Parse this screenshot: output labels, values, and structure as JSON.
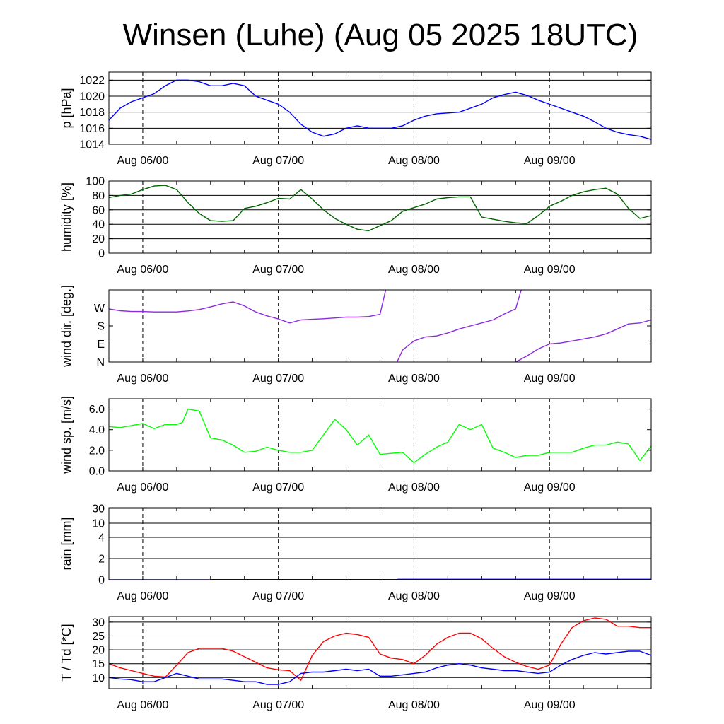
{
  "title": "Winsen (Luhe) (Aug 05 2025 18UTC)",
  "x_tick_labels": [
    "Aug 06/00",
    "Aug 07/00",
    "Aug 08/00",
    "Aug 09/00"
  ],
  "chart_data": [
    {
      "id": "pressure",
      "type": "line",
      "ylabel": "p [hPa]",
      "ylim": [
        1014,
        1023
      ],
      "yticks": [
        1014,
        1016,
        1018,
        1020,
        1022
      ],
      "ytick_labels": [
        "1014",
        "1016",
        "1018",
        "1020",
        "1022"
      ],
      "grid": true,
      "series": [
        {
          "color": "#0000ff",
          "x": [
            0,
            2,
            4,
            6,
            8,
            10,
            12,
            14,
            16,
            18,
            20,
            22,
            24,
            26,
            28,
            30,
            32,
            34,
            36,
            38,
            40,
            42,
            44,
            46,
            48,
            50,
            52,
            54,
            56,
            58,
            60,
            62,
            64,
            66,
            68,
            70,
            72,
            74,
            76,
            78,
            80,
            82,
            84,
            86,
            88,
            90,
            92,
            94,
            96
          ],
          "y": [
            1017.0,
            1018.5,
            1019.3,
            1019.8,
            1020.3,
            1021.3,
            1022.0,
            1022.0,
            1021.8,
            1021.3,
            1021.3,
            1021.6,
            1021.3,
            1020.0,
            1019.5,
            1019.0,
            1018.0,
            1016.5,
            1015.5,
            1015.0,
            1015.3,
            1016.0,
            1016.3,
            1016.0,
            1016.0,
            1016.0,
            1016.3,
            1017.0,
            1017.5,
            1017.8,
            1017.9,
            1018.0,
            1018.5,
            1019.0,
            1019.8,
            1020.2,
            1020.5,
            1020.1,
            1019.5,
            1019.0,
            1018.5,
            1018.0,
            1017.5,
            1016.8,
            1016.0,
            1015.5,
            1015.2,
            1015.0,
            1014.6
          ]
        }
      ]
    },
    {
      "id": "humidity",
      "type": "line",
      "ylabel": "humidity [%]",
      "ylim": [
        0,
        100
      ],
      "yticks": [
        0,
        20,
        40,
        60,
        80,
        100
      ],
      "ytick_labels": [
        "0",
        "20",
        "40",
        "60",
        "80",
        "100"
      ],
      "grid": true,
      "series": [
        {
          "color": "#006400",
          "x": [
            0,
            2,
            4,
            6,
            8,
            10,
            12,
            14,
            16,
            18,
            20,
            22,
            24,
            26,
            28,
            30,
            32,
            34,
            36,
            38,
            40,
            42,
            44,
            46,
            48,
            50,
            52,
            54,
            56,
            58,
            60,
            62,
            64,
            66,
            68,
            70,
            72,
            74,
            76,
            78,
            80,
            82,
            84,
            86,
            88,
            90,
            92,
            94,
            96
          ],
          "y": [
            77,
            80,
            82,
            88,
            93,
            94,
            88,
            70,
            55,
            45,
            44,
            45,
            62,
            65,
            70,
            76,
            75,
            88,
            75,
            60,
            48,
            40,
            33,
            31,
            38,
            45,
            58,
            63,
            68,
            75,
            77,
            78,
            78,
            50,
            47,
            44,
            42,
            41,
            52,
            65,
            72,
            80,
            85,
            88,
            90,
            82,
            62,
            48,
            52
          ]
        }
      ]
    },
    {
      "id": "wind_direction",
      "type": "line",
      "ylabel": "wind dir. [deg.]",
      "ylim": [
        0,
        360
      ],
      "yticks": [
        0,
        90,
        180,
        270
      ],
      "ytick_labels": [
        "N",
        "E",
        "S",
        "W"
      ],
      "grid": false,
      "series": [
        {
          "color": "#8a2be2",
          "x": [
            0,
            2,
            4,
            6,
            8,
            10,
            12,
            14,
            16,
            18,
            20,
            22,
            24,
            26,
            28,
            30,
            32,
            34,
            36,
            38,
            40,
            42,
            44,
            46,
            48,
            49
          ],
          "y": [
            265,
            256,
            252,
            252,
            250,
            250,
            250,
            255,
            262,
            275,
            290,
            300,
            280,
            250,
            230,
            215,
            195,
            210,
            213,
            216,
            220,
            224,
            224,
            227,
            238,
            360
          ]
        },
        {
          "color": "#8a2be2",
          "x": [
            51,
            52,
            54,
            56,
            58,
            60,
            62,
            64,
            66,
            68,
            70,
            72,
            73
          ],
          "y": [
            0,
            60,
            105,
            125,
            130,
            145,
            165,
            180,
            195,
            210,
            240,
            265,
            360
          ]
        },
        {
          "color": "#8a2be2",
          "x": [
            72,
            74,
            76,
            78,
            80,
            82,
            84,
            86,
            88,
            90,
            92,
            94,
            96
          ],
          "y": [
            0,
            30,
            65,
            90,
            95,
            105,
            115,
            125,
            140,
            165,
            190,
            195,
            210
          ]
        }
      ]
    },
    {
      "id": "wind_speed",
      "type": "line",
      "ylabel": "wind sp. [m/s]",
      "ylim": [
        0,
        7
      ],
      "yticks": [
        0,
        2,
        4,
        6
      ],
      "ytick_labels": [
        "0.0",
        "2.0",
        "4.0",
        "6.0"
      ],
      "grid": false,
      "series": [
        {
          "color": "#00ff00",
          "x": [
            0,
            2,
            4,
            6,
            8,
            10,
            12,
            13,
            14,
            16,
            18,
            20,
            22,
            24,
            26,
            28,
            30,
            32,
            34,
            36,
            38,
            40,
            42,
            44,
            46,
            48,
            50,
            52,
            54,
            56,
            58,
            60,
            62,
            64,
            66,
            68,
            70,
            72,
            74,
            76,
            78,
            80,
            82,
            84,
            86,
            88,
            90,
            92,
            94,
            96
          ],
          "y": [
            4.3,
            4.2,
            4.4,
            4.6,
            4.1,
            4.5,
            4.5,
            4.7,
            6.0,
            5.8,
            3.2,
            3.0,
            2.5,
            1.8,
            1.9,
            2.3,
            2.0,
            1.8,
            1.8,
            2.0,
            3.5,
            5.0,
            4.0,
            2.5,
            3.5,
            1.6,
            1.7,
            1.8,
            0.8,
            1.6,
            2.3,
            2.8,
            4.5,
            4.0,
            4.5,
            2.2,
            1.8,
            1.3,
            1.5,
            1.5,
            1.8,
            1.8,
            1.8,
            2.2,
            2.5,
            2.5,
            2.8,
            2.6,
            1.0,
            2.4
          ]
        }
      ]
    },
    {
      "id": "rain",
      "type": "line",
      "ylabel": "rain [mm]",
      "y_scale": "nonlinear",
      "ylim": [
        0,
        30
      ],
      "yticks": [
        0,
        2,
        4,
        10,
        30
      ],
      "ytick_labels": [
        "0",
        "2",
        "4",
        "10",
        "30"
      ],
      "grid": true,
      "series": [
        {
          "color": "#0000ff",
          "x": [
            0,
            18,
            18.2,
            51,
            51.2,
            96
          ],
          "y": [
            0,
            0,
            0.02,
            0.02,
            0.05,
            0.05
          ]
        }
      ]
    },
    {
      "id": "temperature",
      "type": "line",
      "ylabel": "T / Td [*C]",
      "ylim": [
        6,
        32
      ],
      "yticks": [
        10,
        15,
        20,
        25,
        30
      ],
      "ytick_labels": [
        "10",
        "15",
        "20",
        "25",
        "30"
      ],
      "grid": true,
      "series": [
        {
          "color": "#ff0000",
          "x": [
            0,
            2,
            4,
            6,
            8,
            10,
            12,
            14,
            16,
            18,
            20,
            22,
            24,
            26,
            28,
            30,
            32,
            34,
            36,
            38,
            40,
            42,
            44,
            46,
            48,
            50,
            52,
            54,
            56,
            58,
            60,
            62,
            64,
            66,
            68,
            70,
            72,
            74,
            76,
            78,
            80,
            82,
            84,
            86,
            88,
            90,
            92,
            94,
            96
          ],
          "y": [
            15,
            13.5,
            12.5,
            11.5,
            10.5,
            10.2,
            14.5,
            19.0,
            20.5,
            20.5,
            20.5,
            19.5,
            17.5,
            15.5,
            13.5,
            12.8,
            12.5,
            9.0,
            18.0,
            23.0,
            25.0,
            26.0,
            25.5,
            24.5,
            18.5,
            17.0,
            16.5,
            15.0,
            18.0,
            22.0,
            24.5,
            26.0,
            26.0,
            24.0,
            20.5,
            17.5,
            15.5,
            14.0,
            13.0,
            14.5,
            22.0,
            28.0,
            30.5,
            31.5,
            31.0,
            28.5,
            28.5,
            28.0,
            28.0
          ]
        },
        {
          "color": "#0000ff",
          "x": [
            0,
            2,
            4,
            6,
            8,
            10,
            12,
            14,
            16,
            18,
            20,
            22,
            24,
            26,
            28,
            30,
            32,
            34,
            36,
            38,
            40,
            42,
            44,
            46,
            48,
            50,
            52,
            54,
            56,
            58,
            60,
            62,
            64,
            66,
            68,
            70,
            72,
            74,
            76,
            78,
            80,
            82,
            84,
            86,
            88,
            90,
            92,
            94,
            96
          ],
          "y": [
            10.0,
            9.5,
            9.2,
            8.5,
            8.5,
            10.0,
            11.5,
            10.5,
            9.5,
            9.5,
            9.5,
            9.0,
            8.5,
            8.5,
            7.5,
            7.5,
            8.5,
            11.5,
            12.0,
            12.0,
            12.5,
            13.0,
            12.5,
            13.0,
            10.5,
            10.5,
            11.0,
            11.5,
            12.0,
            13.5,
            14.5,
            15.0,
            14.5,
            13.5,
            13.0,
            12.5,
            12.5,
            12.0,
            11.5,
            12.0,
            14.5,
            16.5,
            18.0,
            19.0,
            18.5,
            19.0,
            19.5,
            19.5,
            18.0
          ]
        }
      ]
    }
  ]
}
